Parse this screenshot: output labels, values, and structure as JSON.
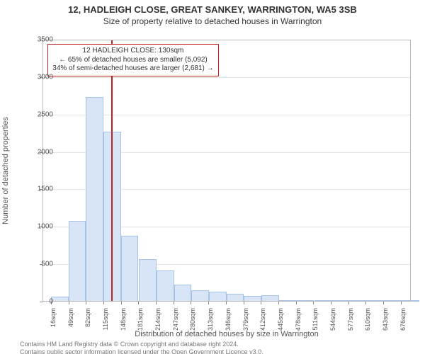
{
  "title": "12, HADLEIGH CLOSE, GREAT SANKEY, WARRINGTON, WA5 3SB",
  "subtitle": "Size of property relative to detached houses in Warrington",
  "y_axis_label": "Number of detached properties",
  "x_axis_label": "Distribution of detached houses by size in Warrington",
  "footer_line1": "Contains HM Land Registry data © Crown copyright and database right 2024.",
  "footer_line2": "Contains public sector information licensed under the Open Government Licence v3.0.",
  "chart": {
    "type": "histogram",
    "background_color": "#ffffff",
    "plot_border_color": "#b7b7b7",
    "grid_color": "#e5e5e5",
    "bar_fill": "#d7e5f7",
    "bar_border": "#a9c3e6",
    "text_color": "#555555",
    "ref_line_color": "#c02020",
    "ref_line_x": 130,
    "callout_bg": "#ffffff",
    "callout_border": "#c02020",
    "callout_lines": [
      "12 HADLEIGH CLOSE: 130sqm",
      "← 65% of detached houses are smaller (5,092)",
      "34% of semi-detached houses are larger (2,681) →"
    ],
    "ylim": [
      0,
      3500
    ],
    "ytick_step": 500,
    "xlim": [
      0,
      695
    ],
    "xtick_start": 16,
    "xtick_step": 33,
    "xtick_count": 21,
    "xtick_suffix": "sqm",
    "bar_width_data": 33,
    "bars": [
      {
        "x": 16,
        "y": 70
      },
      {
        "x": 49,
        "y": 1080
      },
      {
        "x": 82,
        "y": 2730
      },
      {
        "x": 115,
        "y": 2270
      },
      {
        "x": 148,
        "y": 880
      },
      {
        "x": 182,
        "y": 570
      },
      {
        "x": 215,
        "y": 420
      },
      {
        "x": 248,
        "y": 230
      },
      {
        "x": 281,
        "y": 150
      },
      {
        "x": 314,
        "y": 130
      },
      {
        "x": 347,
        "y": 100
      },
      {
        "x": 380,
        "y": 80
      },
      {
        "x": 413,
        "y": 90
      },
      {
        "x": 446,
        "y": 20
      },
      {
        "x": 479,
        "y": 15
      },
      {
        "x": 513,
        "y": 10
      },
      {
        "x": 546,
        "y": 8
      },
      {
        "x": 579,
        "y": 5
      },
      {
        "x": 612,
        "y": 5
      },
      {
        "x": 645,
        "y": 3
      },
      {
        "x": 678,
        "y": 3
      }
    ],
    "title_fontsize": 13,
    "subtitle_fontsize": 12,
    "axis_label_fontsize": 11,
    "tick_fontsize": 10,
    "xtick_fontsize": 9
  }
}
